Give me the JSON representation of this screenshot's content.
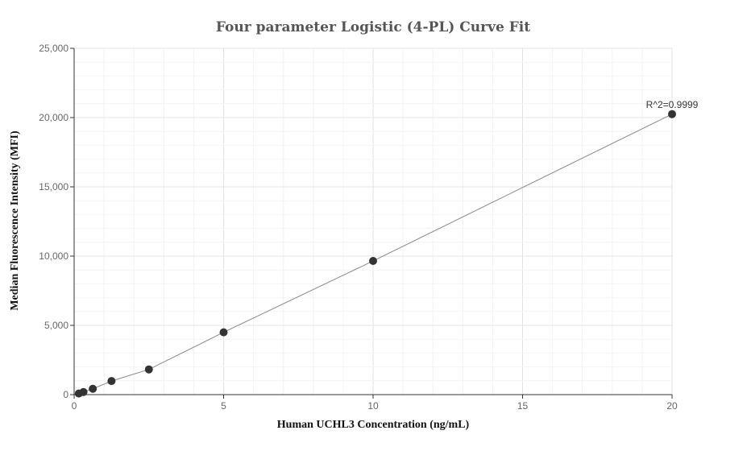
{
  "chart_data": {
    "type": "scatter",
    "title": "Four parameter Logistic (4-PL) Curve Fit",
    "xlabel": "Human UCHL3 Concentration (ng/mL)",
    "ylabel": "Median Fluorescence Intensity (MFI)",
    "xlim": [
      0,
      20
    ],
    "ylim": [
      0,
      25000
    ],
    "x_ticks": [
      0,
      5,
      10,
      15,
      20
    ],
    "x_tick_labels": [
      "0",
      "5",
      "10",
      "15",
      "20"
    ],
    "y_ticks": [
      0,
      5000,
      10000,
      15000,
      20000,
      25000
    ],
    "y_tick_labels": [
      "0",
      "5,000",
      "10,000",
      "15,000",
      "20,000",
      "25,000"
    ],
    "grid": true,
    "series": [
      {
        "kind": "points",
        "x": [
          0.156,
          0.3125,
          0.625,
          1.25,
          2.5,
          5,
          10,
          20
        ],
        "y": [
          80,
          190,
          420,
          980,
          1820,
          4500,
          9650,
          20250
        ]
      },
      {
        "kind": "fit-curve",
        "x": [
          0.156,
          0.3125,
          0.625,
          1.25,
          2.5,
          5,
          10,
          20
        ],
        "y": [
          80,
          190,
          420,
          980,
          1820,
          4500,
          9650,
          20250
        ]
      }
    ],
    "annotation": {
      "text": "R^2=0.9999",
      "x": 20,
      "y": 20250
    },
    "colors": {
      "point": "#333333",
      "curve": "#888888",
      "grid": "#e6e6e6",
      "axis": "#333333"
    }
  }
}
